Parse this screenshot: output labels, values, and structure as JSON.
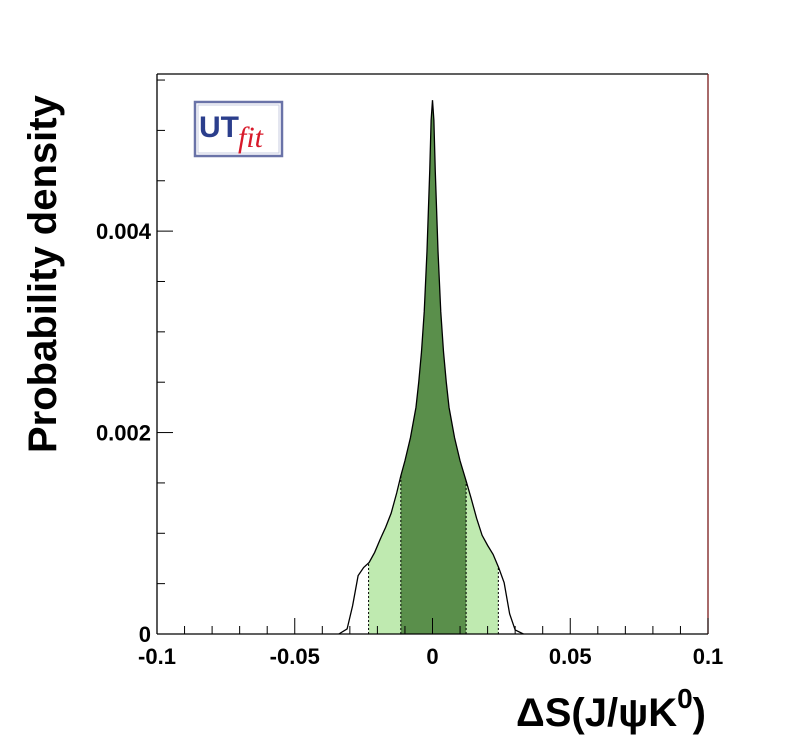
{
  "chart_data": {
    "type": "area",
    "title": "",
    "xlabel": "ΔS(J/ψK",
    "xlabel_superscript": "0",
    "xlabel_close": ")",
    "ylabel": "Probability density",
    "xlim": [
      -0.1,
      0.1
    ],
    "ylim": [
      0,
      0.00556
    ],
    "x_ticks": [
      -0.1,
      -0.05,
      0,
      0.05,
      0.1
    ],
    "x_tick_labels": [
      "-0.1",
      "-0.05",
      "0",
      "0.05",
      "0.1"
    ],
    "y_ticks": [
      0,
      0.002,
      0.004
    ],
    "y_tick_labels": [
      "0",
      "0.002",
      "0.004"
    ],
    "grid": false,
    "legend": "none",
    "logo": {
      "text_main": "UT",
      "text_italic": "fit",
      "colors": {
        "main": "#2b3e8c",
        "italic": "#d8192a",
        "frame": "#6a73a8"
      }
    },
    "colors": {
      "curve": "#000000",
      "band_68": "#5a8f4b",
      "band_95": "#bfeab0",
      "frame": "#000000",
      "frame_right": "#7a1a1a"
    },
    "credible_intervals": {
      "68": [
        -0.0115,
        0.0122
      ],
      "95": [
        -0.0232,
        0.0239
      ]
    },
    "series": [
      {
        "x": [
          -0.034,
          -0.031,
          -0.029,
          -0.027,
          -0.025,
          -0.023,
          -0.021,
          -0.019,
          -0.017,
          -0.015,
          -0.013,
          -0.0115,
          -0.01,
          -0.008,
          -0.006,
          -0.005,
          -0.004,
          -0.003,
          -0.002,
          -0.001,
          -0.0005,
          0,
          0.0005,
          0.001,
          0.002,
          0.003,
          0.004,
          0.005,
          0.006,
          0.008,
          0.01,
          0.0122,
          0.014,
          0.016,
          0.018,
          0.02,
          0.022,
          0.024,
          0.026,
          0.028,
          0.03,
          0.033
        ],
        "y": [
          0,
          5e-05,
          0.00028,
          0.00058,
          0.00066,
          0.00071,
          0.00081,
          0.00094,
          0.00106,
          0.0012,
          0.0014,
          0.00157,
          0.00172,
          0.00195,
          0.00225,
          0.0025,
          0.0028,
          0.0032,
          0.0038,
          0.0046,
          0.0051,
          0.0053,
          0.0051,
          0.0046,
          0.0038,
          0.0032,
          0.0028,
          0.0025,
          0.00225,
          0.00195,
          0.00172,
          0.00152,
          0.00135,
          0.00115,
          0.00098,
          0.00088,
          0.00079,
          0.00066,
          0.00051,
          0.0002,
          4e-05,
          0
        ]
      }
    ]
  }
}
